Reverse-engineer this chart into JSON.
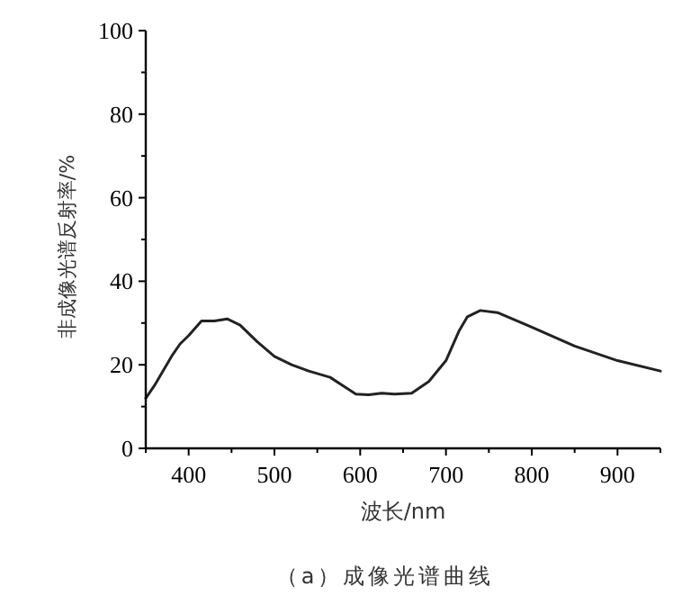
{
  "chart_data": {
    "type": "line",
    "title": "（a）成像光谱曲线",
    "xlabel": "波长/nm",
    "ylabel": "非成像光谱反射率/%",
    "xlim": [
      350,
      950
    ],
    "ylim": [
      0,
      100
    ],
    "xticks": [
      {
        "value": 350,
        "label": null
      },
      400,
      {
        "value": 450,
        "label": null
      },
      500,
      {
        "value": 550,
        "label": null
      },
      600,
      {
        "value": 650,
        "label": null
      },
      700,
      {
        "value": 750,
        "label": null
      },
      800,
      {
        "value": 850,
        "label": null
      },
      900,
      {
        "value": 950,
        "label": null
      }
    ],
    "yticks": [
      0,
      {
        "value": 10,
        "label": null
      },
      20,
      {
        "value": 30,
        "label": null
      },
      40,
      {
        "value": 50,
        "label": null
      },
      60,
      {
        "value": 70,
        "label": null
      },
      80,
      {
        "value": 90,
        "label": null
      },
      100
    ],
    "series": [
      {
        "color": "#222222",
        "x": [
          350,
          360,
          380,
          390,
          400,
          415,
          430,
          445,
          460,
          480,
          500,
          520,
          540,
          565,
          580,
          595,
          610,
          625,
          640,
          660,
          680,
          700,
          715,
          725,
          740,
          760,
          800,
          850,
          900,
          950
        ],
        "values": [
          12,
          15,
          22,
          25,
          27,
          30.5,
          30.5,
          31,
          29.5,
          25.5,
          22,
          20,
          18.5,
          17,
          15,
          13,
          12.8,
          13.2,
          13,
          13.2,
          16,
          21,
          28,
          31.5,
          33,
          32.5,
          29,
          24.5,
          21,
          18.5
        ]
      }
    ]
  }
}
